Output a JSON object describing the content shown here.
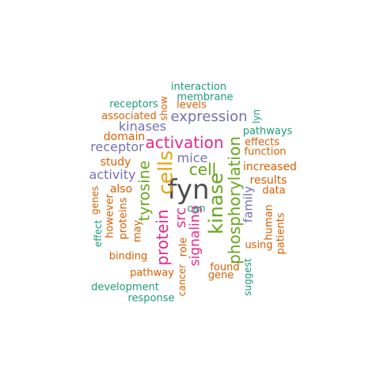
{
  "words": [
    {
      "text": "fyn",
      "color": "#4d4d4d",
      "vertical": false
    },
    {
      "text": "cells",
      "color": "#e6a40f",
      "vertical": true
    },
    {
      "text": "kinase",
      "color": "#66a61e",
      "vertical": true
    },
    {
      "text": "phosphorylation",
      "color": "#66a61e",
      "vertical": true
    },
    {
      "text": "protein",
      "color": "#e7298a",
      "vertical": true
    },
    {
      "text": "activation",
      "color": "#e7298a",
      "vertical": false
    },
    {
      "text": "expression",
      "color": "#7570b3",
      "vertical": false
    },
    {
      "text": "tyrosine",
      "color": "#66a61e",
      "vertical": true
    },
    {
      "text": "signaling",
      "color": "#e7298a",
      "vertical": true
    },
    {
      "text": "cell",
      "color": "#66a61e",
      "vertical": false
    },
    {
      "text": "src",
      "color": "#e7298a",
      "vertical": true
    },
    {
      "text": "kinases",
      "color": "#7570b3",
      "vertical": false
    },
    {
      "text": "receptor",
      "color": "#7570b3",
      "vertical": false
    },
    {
      "text": "activity",
      "color": "#7570b3",
      "vertical": false
    },
    {
      "text": "mice",
      "color": "#7570b3",
      "vertical": false
    },
    {
      "text": "family",
      "color": "#7570b3",
      "vertical": true
    },
    {
      "text": "also",
      "color": "#d95f02",
      "vertical": false
    },
    {
      "text": "study",
      "color": "#d95f02",
      "vertical": false
    },
    {
      "text": "domain",
      "color": "#d95f02",
      "vertical": false
    },
    {
      "text": "increased",
      "color": "#d95f02",
      "vertical": false
    },
    {
      "text": "results",
      "color": "#d95f02",
      "vertical": false
    },
    {
      "text": "proteins",
      "color": "#d95f02",
      "vertical": true
    },
    {
      "text": "associated",
      "color": "#d95f02",
      "vertical": false
    },
    {
      "text": "function",
      "color": "#d95f02",
      "vertical": false
    },
    {
      "text": "effects",
      "color": "#d95f02",
      "vertical": false
    },
    {
      "text": "levels",
      "color": "#d95f02",
      "vertical": false
    },
    {
      "text": "binding",
      "color": "#d95f02",
      "vertical": false
    },
    {
      "text": "pathway",
      "color": "#d95f02",
      "vertical": false
    },
    {
      "text": "found",
      "color": "#d95f02",
      "vertical": false
    },
    {
      "text": "gene",
      "color": "#d95f02",
      "vertical": false
    },
    {
      "text": "using",
      "color": "#d95f02",
      "vertical": false
    },
    {
      "text": "data",
      "color": "#d95f02",
      "vertical": false
    },
    {
      "text": "human",
      "color": "#d95f02",
      "vertical": true
    },
    {
      "text": "patients",
      "color": "#d95f02",
      "vertical": true
    },
    {
      "text": "however",
      "color": "#d95f02",
      "vertical": true
    },
    {
      "text": "may",
      "color": "#d95f02",
      "vertical": true
    },
    {
      "text": "role",
      "color": "#d95f02",
      "vertical": true
    },
    {
      "text": "can",
      "color": "#1b9e77",
      "vertical": false
    },
    {
      "text": "show",
      "color": "#d95f02",
      "vertical": true
    },
    {
      "text": "cancer",
      "color": "#d95f02",
      "vertical": true
    },
    {
      "text": "genes",
      "color": "#d95f02",
      "vertical": true
    },
    {
      "text": "interaction",
      "color": "#1b9e77",
      "vertical": false
    },
    {
      "text": "membrane",
      "color": "#1b9e77",
      "vertical": false
    },
    {
      "text": "receptors",
      "color": "#1b9e77",
      "vertical": false
    },
    {
      "text": "pathways",
      "color": "#1b9e77",
      "vertical": false
    },
    {
      "text": "lyn",
      "color": "#1b9e77",
      "vertical": true
    },
    {
      "text": "effect",
      "color": "#1b9e77",
      "vertical": true
    },
    {
      "text": "suggest",
      "color": "#1b9e77",
      "vertical": true
    },
    {
      "text": "development",
      "color": "#1b9e77",
      "vertical": false
    },
    {
      "text": "response",
      "color": "#1b9e77",
      "vertical": false
    }
  ]
}
